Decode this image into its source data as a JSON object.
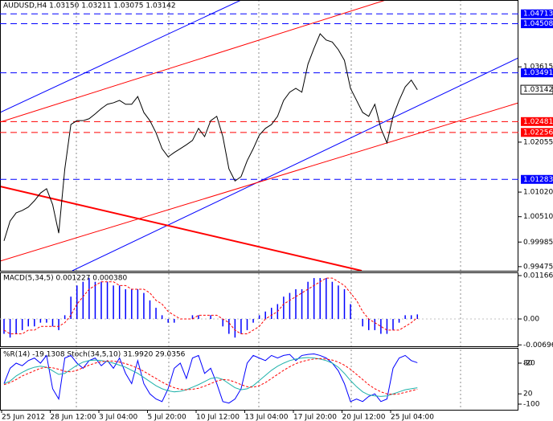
{
  "chart_data": [
    {
      "type": "line",
      "title": "AUDUSD,H4 1.03150 1.03211 1.03075 1.03142",
      "categories": [
        "25 Jun 2012",
        null,
        null,
        null,
        null,
        null,
        null,
        null,
        "28 Jun 12:00",
        null,
        null,
        null,
        null,
        null,
        null,
        null,
        "3 Jul 04:00",
        null,
        null,
        null,
        null,
        null,
        null,
        null,
        "5 Jul 20:00",
        null,
        null,
        null,
        null,
        null,
        null,
        null,
        "10 Jul 12:00",
        null,
        null,
        null,
        null,
        null,
        null,
        null,
        "13 Jul 04:00",
        null,
        null,
        null,
        null,
        null,
        null,
        null,
        "17 Jul 20:00",
        null,
        null,
        null,
        null,
        null,
        null,
        null,
        "20 Jul 12:00",
        null,
        null,
        null,
        null,
        null,
        null,
        null,
        "25 Jul 04:00",
        null,
        null,
        null,
        null
      ],
      "series": [
        {
          "color": "#000000",
          "values": [
            1.0001,
            1.0042,
            1.0059,
            1.0064,
            1.0071,
            1.0084,
            1.01,
            1.0109,
            1.0076,
            1.0017,
            1.015,
            1.0242,
            1.025,
            1.025,
            1.0254,
            1.0264,
            1.0275,
            1.0284,
            1.0287,
            1.0292,
            1.0284,
            1.0284,
            1.03,
            1.0267,
            1.025,
            1.0225,
            1.0192,
            1.0175,
            1.0184,
            1.0192,
            1.02,
            1.0209,
            1.0234,
            1.0217,
            1.025,
            1.0259,
            1.0217,
            1.015,
            1.0125,
            1.0134,
            1.0167,
            1.0192,
            1.022,
            1.0234,
            1.0242,
            1.0259,
            1.0292,
            1.0309,
            1.0317,
            1.0309,
            1.0367,
            1.04,
            1.043,
            1.0417,
            1.0413,
            1.0397,
            1.0375,
            1.0317,
            1.0292,
            1.0267,
            1.0259,
            1.0284,
            1.0234,
            1.0204,
            1.0259,
            1.0292,
            1.032,
            1.0334,
            1.0314
          ]
        }
      ],
      "ylim": [
        0.9939,
        1.05
      ],
      "yticks": [
        1.03615,
        1.02055,
        {
          "value": 1.0102,
          "label": "1.01020"
        },
        {
          "value": 1.0051,
          "label": "1.00510"
        },
        0.99985,
        0.99475
      ],
      "levels": [
        {
          "value": 1.04713,
          "color": "#0000ff"
        },
        {
          "value": 1.04508,
          "color": "#0000ff"
        },
        {
          "value": 1.03491,
          "color": "#0000ff"
        },
        {
          "value": 1.02481,
          "color": "#ff0000"
        },
        {
          "value": 1.02256,
          "color": "#ff0000"
        },
        {
          "value": 1.01283,
          "color": "#0000ff"
        }
      ],
      "current": 1.03142
    },
    {
      "type": "bar",
      "title": "MACD(5,34,5) 0.001227 0.000380",
      "series": [
        {
          "color": "#0000ff",
          "values": [
            -0.004,
            -0.005,
            -0.004,
            -0.003,
            -0.002,
            -0.002,
            -0.001,
            -0.001,
            -0.002,
            -0.003,
            0.001,
            0.006,
            0.009,
            0.01,
            0.011,
            0.01,
            0.01,
            0.01,
            0.009,
            0.009,
            0.008,
            0.008,
            0.008,
            0.007,
            0.005,
            0.003,
            0.001,
            -0.001,
            -0.001,
            0,
            0,
            0.001,
            0.001,
            0,
            0.001,
            0,
            -0.002,
            -0.004,
            -0.005,
            -0.004,
            -0.003,
            -0.001,
            0.001,
            0.002,
            0.003,
            0.004,
            0.006,
            0.007,
            0.008,
            0.008,
            0.01,
            0.011,
            0.011,
            0.011,
            0.01,
            0.009,
            0.008,
            0.004,
            0,
            -0.002,
            -0.003,
            -0.003,
            -0.004,
            -0.004,
            -0.003,
            -0.001,
            0.001,
            0.001,
            0.001227
          ]
        },
        {
          "color": "#ff0000",
          "dashed": true,
          "values": [
            -0.003,
            -0.004,
            -0.004,
            -0.004,
            -0.003,
            -0.003,
            -0.002,
            -0.002,
            -0.002,
            -0.002,
            -0.001,
            0.001,
            0.004,
            0.006,
            0.008,
            0.009,
            0.01,
            0.01,
            0.01,
            0.009,
            0.009,
            0.008,
            0.008,
            0.008,
            0.007,
            0.005,
            0.004,
            0.002,
            0.001,
            0,
            0,
            0,
            0.001,
            0.001,
            0.001,
            0.001,
            0,
            -0.001,
            -0.003,
            -0.004,
            -0.004,
            -0.003,
            -0.002,
            0,
            0.001,
            0.002,
            0.004,
            0.005,
            0.006,
            0.007,
            0.008,
            0.009,
            0.01,
            0.011,
            0.011,
            0.01,
            0.009,
            0.007,
            0.005,
            0.002,
            0,
            -0.001,
            -0.002,
            -0.003,
            -0.003,
            -0.003,
            -0.002,
            -0.001,
            0.00038
          ]
        }
      ],
      "ylim": [
        -0.00756,
        0.01253
      ],
      "yticks": [
        0.011668,
        {
          "value": 0,
          "label": "0.00"
        },
        -0.006968
      ]
    },
    {
      "type": "line",
      "title": "%R(14) -19.1308 Stoch(34,5,10) 31.9920 29.0356",
      "series": [
        {
          "color": "#0000ff",
          "values": [
            -60,
            -30,
            -20,
            -25,
            -15,
            -10,
            -20,
            -5,
            -70,
            -90,
            -10,
            -5,
            -20,
            -30,
            -15,
            -10,
            -25,
            -15,
            -30,
            -10,
            -40,
            -60,
            -15,
            -60,
            -80,
            -90,
            -95,
            -70,
            -30,
            -20,
            -50,
            -10,
            -5,
            -40,
            -30,
            -60,
            -95,
            -98,
            -90,
            -70,
            -20,
            -5,
            -10,
            -15,
            -5,
            -10,
            -5,
            -3,
            -15,
            -5,
            -3,
            -2,
            -5,
            -10,
            -20,
            -35,
            -60,
            -95,
            -90,
            -95,
            -85,
            -80,
            -95,
            -90,
            -30,
            -10,
            -5,
            -15,
            -19.1308
          ]
        },
        {
          "color": "#20b2aa",
          "axis": "y2",
          "values": [
            40,
            45,
            55,
            62,
            68,
            72,
            74,
            72,
            65,
            58,
            60,
            68,
            76,
            82,
            85,
            86,
            85,
            83,
            80,
            76,
            72,
            66,
            60,
            52,
            44,
            36,
            30,
            26,
            24,
            25,
            28,
            33,
            38,
            44,
            50,
            52,
            48,
            40,
            32,
            28,
            30,
            36,
            46,
            56,
            66,
            74,
            80,
            85,
            88,
            90,
            91,
            90,
            88,
            85,
            80,
            72,
            60,
            46,
            34,
            24,
            18,
            16,
            15,
            16,
            20,
            24,
            28,
            30,
            31.992
          ]
        },
        {
          "color": "#ff0000",
          "axis": "y2",
          "dashed": true,
          "values": [
            38,
            42,
            48,
            55,
            60,
            65,
            70,
            72,
            71,
            68,
            64,
            63,
            66,
            71,
            76,
            80,
            83,
            84,
            84,
            82,
            79,
            75,
            70,
            64,
            57,
            50,
            43,
            37,
            32,
            29,
            28,
            29,
            31,
            35,
            40,
            45,
            48,
            47,
            43,
            38,
            34,
            33,
            36,
            42,
            50,
            58,
            66,
            73,
            79,
            83,
            86,
            88,
            89,
            88,
            86,
            82,
            76,
            68,
            58,
            48,
            38,
            30,
            24,
            20,
            19,
            20,
            23,
            26,
            29.0356
          ]
        }
      ],
      "ylim": [
        -111,
        8.2
      ],
      "yticks": [
        -20,
        -100
      ],
      "y2lim": [
        -11,
        108.2
      ],
      "y2ticks": [
        80,
        20
      ]
    }
  ]
}
